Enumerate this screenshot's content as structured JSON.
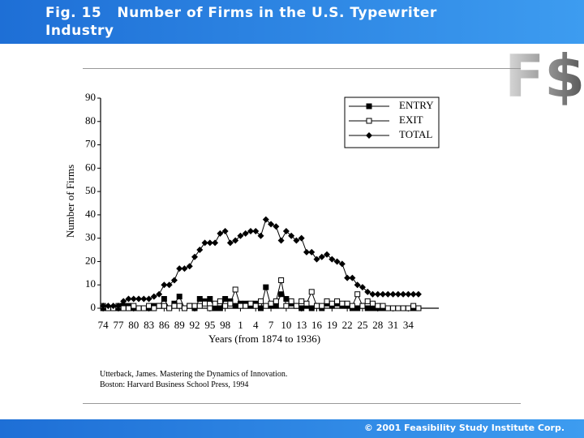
{
  "header": {
    "title": "Fig. 15   Number of Firms in the U.S. Typewriter Industry"
  },
  "logo": "F$",
  "chart_data": {
    "type": "line",
    "x_label": "Years (from 1874 to 1936)",
    "y_label": "Number of Firms",
    "x": [
      1874,
      1875,
      1876,
      1877,
      1878,
      1879,
      1880,
      1881,
      1882,
      1883,
      1884,
      1885,
      1886,
      1887,
      1888,
      1889,
      1890,
      1891,
      1892,
      1893,
      1894,
      1895,
      1896,
      1897,
      1898,
      1899,
      1900,
      1901,
      1902,
      1903,
      1904,
      1905,
      1906,
      1907,
      1908,
      1909,
      1910,
      1911,
      1912,
      1913,
      1914,
      1915,
      1916,
      1917,
      1918,
      1919,
      1920,
      1921,
      1922,
      1923,
      1924,
      1925,
      1926,
      1927,
      1928,
      1929,
      1930,
      1931,
      1932,
      1933,
      1934,
      1935,
      1936
    ],
    "series": [
      {
        "name": "ENTRY",
        "color": "#000000",
        "marker": "square",
        "values": [
          0,
          0,
          0,
          0,
          1,
          1,
          0,
          0,
          0,
          0,
          1,
          1,
          4,
          0,
          2,
          5,
          0,
          1,
          0,
          4,
          3,
          4,
          0,
          0,
          4,
          3,
          1,
          2,
          2,
          1,
          2,
          0,
          9,
          1,
          1,
          6,
          4,
          2,
          1,
          0,
          1,
          0,
          1,
          0,
          2,
          1,
          2,
          1,
          1,
          0,
          0,
          1,
          0,
          0,
          0,
          0,
          0,
          0,
          0,
          0,
          0,
          0,
          0
        ]
      },
      {
        "name": "EXIT",
        "color": "#000000",
        "marker": "open-square",
        "values": [
          1,
          0,
          0,
          1,
          0,
          0,
          1,
          0,
          0,
          1,
          0,
          1,
          1,
          0,
          1,
          1,
          0,
          1,
          1,
          1,
          2,
          0,
          2,
          3,
          1,
          2,
          8,
          1,
          1,
          2,
          1,
          3,
          1,
          2,
          3,
          12,
          1,
          3,
          1,
          3,
          2,
          7,
          1,
          1,
          3,
          2,
          3,
          2,
          2,
          1,
          6,
          1,
          3,
          2,
          1,
          1,
          0,
          0,
          0,
          0,
          0,
          1,
          0
        ]
      },
      {
        "name": "TOTAL",
        "color": "#000000",
        "marker": "diamond",
        "values": [
          1,
          1,
          1,
          1,
          3,
          4,
          4,
          4,
          4,
          4,
          5,
          6,
          10,
          10,
          12,
          17,
          17,
          18,
          22,
          25,
          28,
          28,
          28,
          32,
          33,
          28,
          29,
          31,
          32,
          33,
          33,
          31,
          38,
          36,
          35,
          29,
          33,
          31,
          29,
          30,
          24,
          24,
          21,
          22,
          23,
          21,
          20,
          19,
          13,
          13,
          10,
          9,
          7,
          6,
          6,
          6,
          6,
          6,
          6,
          6,
          6,
          6,
          6
        ]
      }
    ],
    "xlim": [
      1873.5,
      1940
    ],
    "xticks": [
      {
        "value": 1874,
        "label": "74"
      },
      {
        "value": 1877,
        "label": "77"
      },
      {
        "value": 1880,
        "label": "80"
      },
      {
        "value": 1883,
        "label": "83"
      },
      {
        "value": 1886,
        "label": "86"
      },
      {
        "value": 1889,
        "label": "89"
      },
      {
        "value": 1892,
        "label": "92"
      },
      {
        "value": 1895,
        "label": "95"
      },
      {
        "value": 1898,
        "label": "98"
      },
      {
        "value": 1901,
        "label": "1"
      },
      {
        "value": 1904,
        "label": "4"
      },
      {
        "value": 1907,
        "label": "7"
      },
      {
        "value": 1910,
        "label": "10"
      },
      {
        "value": 1913,
        "label": "13"
      },
      {
        "value": 1916,
        "label": "16"
      },
      {
        "value": 1919,
        "label": "19"
      },
      {
        "value": 1922,
        "label": "22"
      },
      {
        "value": 1925,
        "label": "25"
      },
      {
        "value": 1928,
        "label": "28"
      },
      {
        "value": 1931,
        "label": "31"
      },
      {
        "value": 1934,
        "label": "34"
      }
    ],
    "ylim": [
      0,
      90
    ],
    "yticks": [
      0,
      10,
      20,
      30,
      40,
      50,
      60,
      70,
      80,
      90
    ],
    "legend": "top-right",
    "grid": false
  },
  "citation": [
    "Utterback, James.  Mastering the Dynamics of Innovation.",
    "Boston: Harvard Business School Press, 1994"
  ],
  "footer": "© 2001 Feasibility Study Institute Corp."
}
